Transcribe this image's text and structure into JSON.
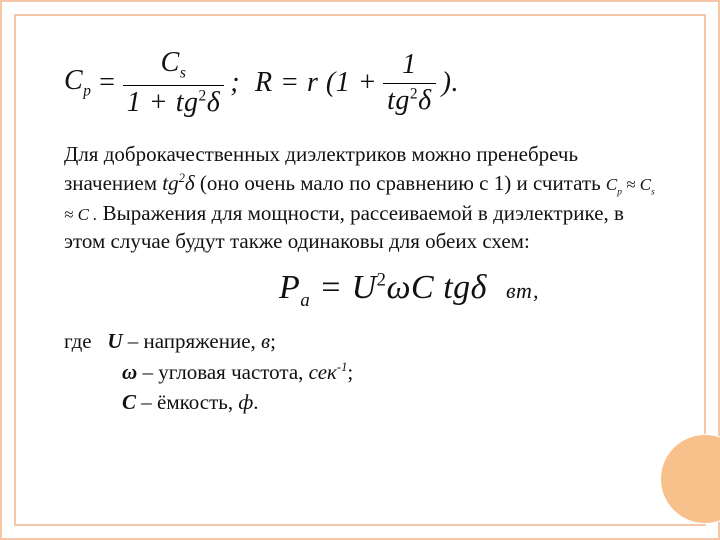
{
  "colors": {
    "frame": "#f4c7a8",
    "circle": "#f8c08a",
    "text": "#111111",
    "background": "#ffffff"
  },
  "formula_main": {
    "Cp_label": "C",
    "Cp_sub": "p",
    "eq": "=",
    "frac1_num": "C",
    "frac1_num_sub": "s",
    "frac1_den_left": "1 + tg",
    "frac1_den_exp": "2",
    "frac1_den_right": "δ",
    "sep": ";  R = r (1 +",
    "frac2_num": "1",
    "frac2_den_left": "tg",
    "frac2_den_exp": "2",
    "frac2_den_right": "δ",
    "tail": ")."
  },
  "paragraph": {
    "t1": "Для доброкачественных диэлектриков  можно пренебречь значением ",
    "m1_a": "tg",
    "m1_exp": "2",
    "m1_b": "δ",
    "t2": "  (оно очень мало по сравнению с 1) и считать ",
    "m2": "C",
    "m2_sub1": "p",
    "m2_mid": " ≈ C",
    "m2_sub2": "s",
    "m2_tail": " ≈ C .",
    "t3": " Выражения для мощности, рассеиваемой в диэлектрике, в этом случае будут также одинаковы для обеих схем:"
  },
  "formula_power": {
    "lhs": "P",
    "lhs_sub": "a",
    "eq": " = U",
    "exp": "2",
    "mid": "ωC tgδ",
    "unit": "вт,"
  },
  "defs": {
    "lead": "где   ",
    "u_sym": "U",
    "u_txt": " – напряжение, ",
    "u_unit": "в",
    "u_end": ";",
    "w_sym": "ω",
    "w_txt": " – угловая частота, ",
    "w_unit": "сек",
    "w_exp": "-1",
    "w_end": ";",
    "c_sym": "C",
    "c_txt": " – ёмкость, ",
    "c_unit": "ф",
    "c_end": "."
  }
}
